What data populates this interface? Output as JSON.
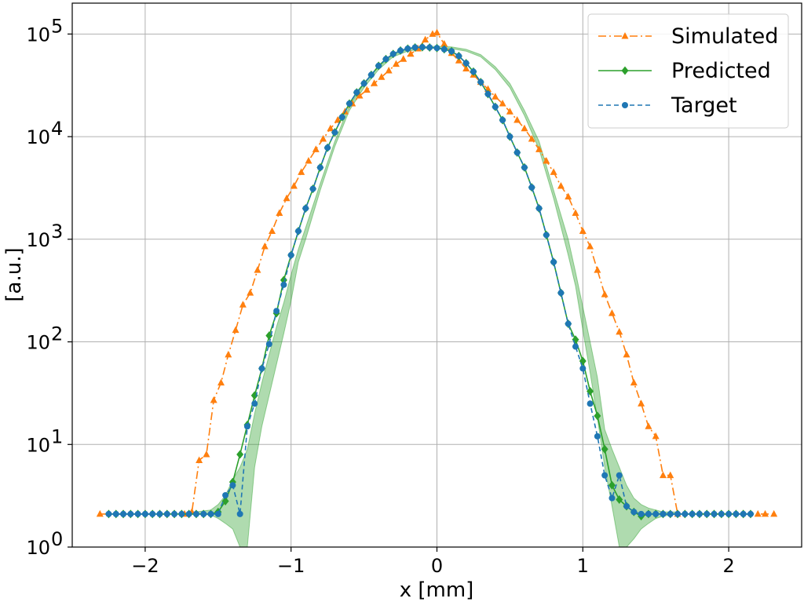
{
  "chart_data": {
    "type": "line",
    "xlabel": "x [mm]",
    "ylabel": "[a.u.]",
    "xlim": [
      -2.5,
      2.5
    ],
    "ylim": [
      1,
      200000
    ],
    "yscale": "log",
    "grid": true,
    "legend_position": "top-right",
    "x_ticks": [
      {
        "value": -2,
        "label": "−2"
      },
      {
        "value": -1,
        "label": "−1"
      },
      {
        "value": 0,
        "label": "0"
      },
      {
        "value": 1,
        "label": "1"
      },
      {
        "value": 2,
        "label": "2"
      }
    ],
    "y_ticks": [
      {
        "value": 1,
        "base": "10",
        "exp": "0"
      },
      {
        "value": 10,
        "base": "10",
        "exp": "1"
      },
      {
        "value": 100,
        "base": "10",
        "exp": "2"
      },
      {
        "value": 1000,
        "base": "10",
        "exp": "3"
      },
      {
        "value": 10000,
        "base": "10",
        "exp": "4"
      },
      {
        "value": 100000,
        "base": "10",
        "exp": "5"
      }
    ],
    "band": {
      "color": "#2ca02c",
      "x": [
        -1.65,
        -1.55,
        -1.5,
        -1.45,
        -1.4,
        -1.35,
        -1.3,
        -1.25,
        -1.2,
        -1.15,
        -1.1,
        -1.05,
        -1.0,
        -0.95,
        -0.9,
        -0.8,
        -0.7,
        -0.6,
        -0.5,
        -0.4,
        -0.3,
        -0.2,
        -0.1,
        0.0,
        0.1,
        0.2,
        0.3,
        0.4,
        0.5,
        0.6,
        0.7,
        0.8,
        0.9,
        0.95,
        1.0,
        1.05,
        1.1,
        1.15,
        1.2,
        1.25,
        1.3,
        1.35,
        1.4,
        1.45,
        1.5,
        1.55,
        1.65
      ],
      "lower": [
        2.1,
        2.05,
        1.9,
        1.7,
        1.5,
        1.0,
        1.0,
        6,
        15,
        30,
        60,
        120,
        250,
        600,
        1000,
        3000,
        8000,
        18000,
        30000,
        45000,
        60000,
        68000,
        72000,
        73000,
        72000,
        68000,
        60000,
        45000,
        30000,
        16000,
        7500,
        2500,
        700,
        350,
        130,
        50,
        18,
        6,
        2.5,
        1.0,
        1.0,
        1.2,
        1.5,
        1.7,
        1.9,
        2.0,
        2.1
      ],
      "upper": [
        2.2,
        2.3,
        2.6,
        3.2,
        4.5,
        6,
        9,
        20,
        40,
        75,
        140,
        240,
        450,
        800,
        1300,
        3500,
        9000,
        20000,
        33000,
        48000,
        63000,
        71000,
        75000,
        76000,
        75000,
        71000,
        63000,
        48000,
        33000,
        18000,
        9000,
        3000,
        1000,
        480,
        220,
        100,
        45,
        14,
        9,
        6,
        4,
        3,
        2.6,
        2.4,
        2.3,
        2.2,
        2.2
      ]
    },
    "series": [
      {
        "name": "Simulated",
        "color": "#ff7f0e",
        "style": "dashdot",
        "marker": "triangle",
        "x": [
          -2.31,
          -1.73,
          -1.68,
          -1.63,
          -1.58,
          -1.53,
          -1.48,
          -1.43,
          -1.38,
          -1.33,
          -1.28,
          -1.23,
          -1.18,
          -1.13,
          -1.08,
          -1.03,
          -0.98,
          -0.93,
          -0.88,
          -0.83,
          -0.78,
          -0.73,
          -0.68,
          -0.63,
          -0.58,
          -0.53,
          -0.48,
          -0.43,
          -0.38,
          -0.33,
          -0.28,
          -0.23,
          -0.18,
          -0.13,
          -0.08,
          -0.03,
          0.0,
          0.05,
          0.1,
          0.15,
          0.2,
          0.25,
          0.3,
          0.35,
          0.4,
          0.45,
          0.5,
          0.55,
          0.6,
          0.65,
          0.7,
          0.75,
          0.8,
          0.85,
          0.9,
          0.95,
          1.0,
          1.05,
          1.1,
          1.15,
          1.2,
          1.25,
          1.3,
          1.35,
          1.4,
          1.45,
          1.5,
          1.55,
          1.6,
          1.65,
          2.2,
          2.25,
          2.31
        ],
        "y": [
          2.1,
          2.1,
          2.2,
          7,
          8,
          27,
          40,
          75,
          130,
          230,
          300,
          500,
          850,
          1200,
          1800,
          2500,
          3300,
          4500,
          5800,
          7500,
          9500,
          12000,
          14500,
          17500,
          21000,
          25000,
          28500,
          33000,
          38000,
          44000,
          51000,
          57000,
          64000,
          72000,
          88000,
          100000,
          103000,
          80000,
          65000,
          55000,
          46000,
          40000,
          34000,
          29000,
          24500,
          21000,
          17500,
          14500,
          12000,
          9500,
          7500,
          5800,
          4500,
          3300,
          2600,
          1800,
          1200,
          850,
          500,
          290,
          190,
          125,
          75,
          40,
          25,
          15,
          12,
          5,
          5,
          2.1,
          2.1,
          2.1,
          2.1
        ]
      },
      {
        "name": "Predicted",
        "color": "#2ca02c",
        "style": "solid",
        "marker": "diamond",
        "x": [
          -2.25,
          -2.2,
          -2.15,
          -2.1,
          -2.05,
          -2.0,
          -1.95,
          -1.9,
          -1.85,
          -1.8,
          -1.75,
          -1.7,
          -1.65,
          -1.6,
          -1.55,
          -1.5,
          -1.45,
          -1.4,
          -1.35,
          -1.3,
          -1.25,
          -1.2,
          -1.15,
          -1.1,
          -1.05,
          -1.0,
          -0.95,
          -0.9,
          -0.85,
          -0.8,
          -0.75,
          -0.7,
          -0.65,
          -0.6,
          -0.55,
          -0.5,
          -0.45,
          -0.4,
          -0.35,
          -0.3,
          -0.25,
          -0.2,
          -0.15,
          -0.1,
          -0.05,
          0.0,
          0.05,
          0.1,
          0.15,
          0.2,
          0.25,
          0.3,
          0.35,
          0.4,
          0.45,
          0.5,
          0.55,
          0.6,
          0.65,
          0.7,
          0.75,
          0.8,
          0.85,
          0.9,
          0.95,
          1.0,
          1.05,
          1.1,
          1.15,
          1.2,
          1.25,
          1.3,
          1.35,
          1.4,
          1.45,
          1.5,
          1.55,
          1.6,
          1.65,
          1.7,
          1.75,
          1.8,
          1.85,
          1.9,
          1.95,
          2.0,
          2.05,
          2.1,
          2.15
        ],
        "y": [
          2.1,
          2.1,
          2.1,
          2.1,
          2.1,
          2.1,
          2.1,
          2.1,
          2.1,
          2.1,
          2.1,
          2.1,
          2.1,
          2.1,
          2.1,
          2.2,
          2.8,
          4.3,
          8,
          15.5,
          30,
          55,
          115,
          190,
          400,
          700,
          1200,
          2000,
          3100,
          5000,
          7800,
          11000,
          15500,
          21000,
          27000,
          33000,
          40000,
          49000,
          57000,
          64000,
          69000,
          72000,
          74000,
          74500,
          74000,
          73000,
          71000,
          68000,
          61000,
          52000,
          43000,
          34000,
          26000,
          19500,
          14500,
          10000,
          7000,
          5000,
          3200,
          2000,
          1100,
          600,
          300,
          150,
          105,
          65,
          33,
          19,
          9,
          4,
          2.9,
          2.5,
          2.2,
          2.0,
          2.1,
          2.1,
          2.1,
          2.1,
          2.1,
          2.1,
          2.1,
          2.1,
          2.1,
          2.1,
          2.1,
          2.1,
          2.1,
          2.1,
          2.1
        ],
        "draw_x": [
          -2.25,
          -2.2,
          -2.15,
          -2.1,
          -2.05,
          -2.0,
          -1.95,
          -1.9,
          -1.85,
          -1.8,
          -1.75,
          -1.7,
          -1.65,
          -1.6,
          -1.55,
          -1.5,
          -1.46,
          -1.4,
          -1.34,
          -1.28,
          -1.22,
          -1.16,
          -1.1,
          -1.04,
          -0.98,
          -0.92,
          -0.86,
          -0.8,
          -0.74,
          -0.68,
          -0.62,
          -0.56,
          -0.5,
          -0.44,
          -0.38,
          -0.32,
          -0.26,
          -0.2,
          -0.14,
          -0.08,
          -0.02,
          0.03,
          0.09,
          0.15,
          0.21,
          0.27,
          0.33,
          0.39,
          0.45,
          0.51,
          0.57,
          0.63,
          0.69,
          0.75,
          0.81,
          0.87,
          0.93,
          0.99,
          1.05,
          1.11,
          1.17,
          1.23,
          1.29,
          1.35,
          1.41,
          1.47,
          1.53,
          1.59,
          1.65,
          1.71,
          1.77,
          1.83,
          1.89,
          1.95,
          2.01,
          2.07,
          2.13
        ]
      },
      {
        "name": "Target",
        "color": "#1f77b4",
        "style": "dashed",
        "marker": "circle",
        "x": [
          -2.25,
          -2.2,
          -2.15,
          -2.1,
          -2.05,
          -2.0,
          -1.95,
          -1.9,
          -1.85,
          -1.8,
          -1.75,
          -1.7,
          -1.65,
          -1.6,
          -1.55,
          -1.5,
          -1.45,
          -1.4,
          -1.35,
          -1.3,
          -1.25,
          -1.2,
          -1.15,
          -1.1,
          -1.05,
          -1.0,
          -0.95,
          -0.9,
          -0.85,
          -0.8,
          -0.75,
          -0.7,
          -0.65,
          -0.6,
          -0.55,
          -0.5,
          -0.45,
          -0.4,
          -0.35,
          -0.3,
          -0.25,
          -0.2,
          -0.15,
          -0.1,
          -0.05,
          0.0,
          0.05,
          0.1,
          0.15,
          0.2,
          0.25,
          0.3,
          0.35,
          0.4,
          0.45,
          0.5,
          0.55,
          0.6,
          0.65,
          0.7,
          0.75,
          0.8,
          0.85,
          0.9,
          0.95,
          1.0,
          1.05,
          1.1,
          1.15,
          1.2,
          1.25,
          1.3,
          1.35,
          1.4,
          1.45,
          1.5,
          1.55,
          1.6,
          1.65,
          1.7,
          1.75,
          1.8,
          1.85,
          1.9,
          1.95,
          2.0,
          2.05,
          2.1,
          2.15
        ],
        "y": [
          2.1,
          2.1,
          2.1,
          2.1,
          2.1,
          2.1,
          2.1,
          2.1,
          2.1,
          2.1,
          2.1,
          2.1,
          2.1,
          2.1,
          2.1,
          2.1,
          3.2,
          4,
          2.1,
          15,
          25,
          55,
          95,
          200,
          360,
          700,
          1200,
          2000,
          3100,
          5000,
          7800,
          11000,
          15500,
          21000,
          27000,
          33000,
          40000,
          49000,
          57000,
          64000,
          69000,
          72000,
          74000,
          74500,
          74000,
          73000,
          71000,
          68000,
          61000,
          52000,
          43000,
          34000,
          26000,
          19500,
          14500,
          10000,
          7000,
          5000,
          3200,
          2000,
          1100,
          600,
          300,
          150,
          90,
          55,
          25,
          12,
          5,
          3,
          5,
          2.5,
          2.2,
          2.1,
          2.1,
          2.1,
          2.1,
          2.1,
          2.1,
          2.1,
          2.1,
          2.1,
          2.1,
          2.1,
          2.1,
          2.1,
          2.1,
          2.1,
          2.1
        ]
      }
    ],
    "legend": [
      "Simulated",
      "Predicted",
      "Target"
    ]
  }
}
